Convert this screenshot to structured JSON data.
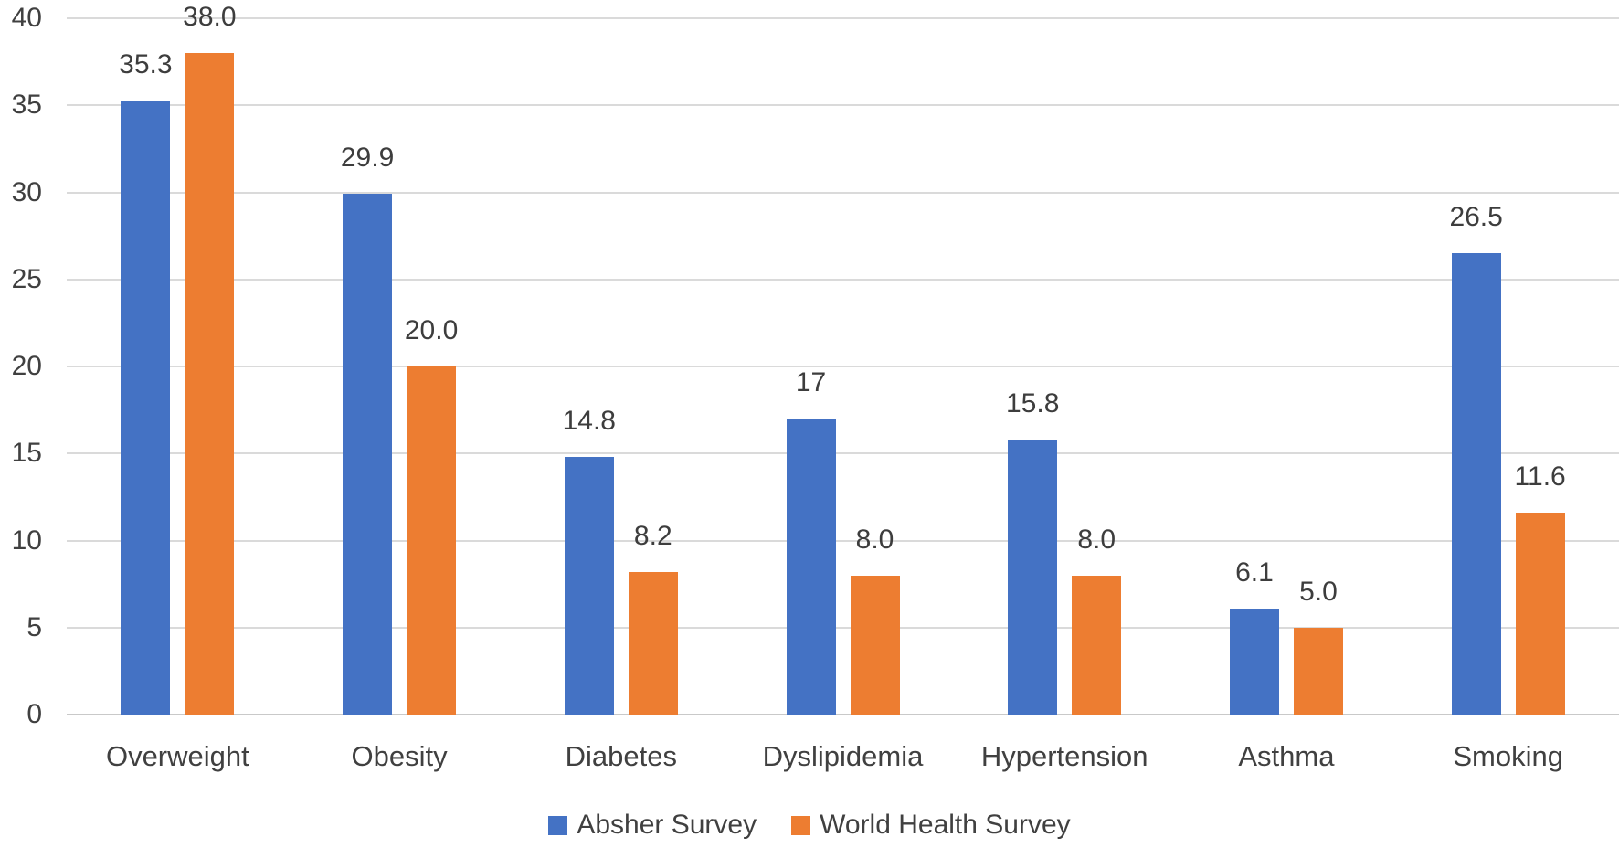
{
  "chart_data": {
    "type": "bar",
    "title": "",
    "xlabel": "",
    "ylabel": "",
    "categories": [
      "Overweight",
      "Obesity",
      "Diabetes",
      "Dyslipidemia",
      "Hypertension",
      "Asthma",
      "Smoking"
    ],
    "series": [
      {
        "name": "Absher Survey",
        "color": "#4472C4",
        "values": [
          35.3,
          29.9,
          14.8,
          17,
          15.8,
          6.1,
          26.5
        ],
        "labels": [
          "35.3",
          "29.9",
          "14.8",
          "17",
          "15.8",
          "6.1",
          "26.5"
        ]
      },
      {
        "name": "World Health Survey",
        "color": "#ED7D31",
        "values": [
          38.0,
          20.0,
          8.2,
          8.0,
          8.0,
          5.0,
          11.6
        ],
        "labels": [
          "38.0",
          "20.0",
          "8.2",
          "8.0",
          "8.0",
          "5.0",
          "11.6"
        ]
      }
    ],
    "ylim": [
      0,
      40
    ],
    "ytick_values": [
      0,
      5,
      10,
      15,
      20,
      25,
      30,
      35,
      40
    ],
    "ytick_labels": [
      "0",
      "5",
      "10",
      "15",
      "20",
      "25",
      "30",
      "35",
      "40"
    ],
    "grid": true,
    "legend_position": "bottom"
  },
  "colors": {
    "series1": "#4472C4",
    "series2": "#ED7D31",
    "gridline": "#DADADA",
    "axis_line": "#C9C9C9",
    "text": "#404040",
    "background": "#FFFFFF"
  }
}
